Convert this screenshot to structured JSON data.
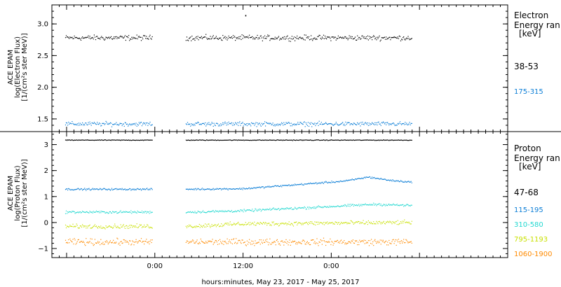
{
  "chart_data": [
    {
      "type": "scatter",
      "panel": "electron",
      "ylabel_lines": [
        "ACE EPAM",
        "log(Electron Flux)",
        "[1/(cm²s ster MeV)]"
      ],
      "ylim": [
        1.3,
        3.3
      ],
      "yticks": [
        1.5,
        2.0,
        2.5,
        3.0
      ],
      "ytick_labels": [
        "1.5",
        "2.0",
        "2.5",
        "3.0"
      ],
      "legend": {
        "title_lines": [
          "Electron",
          "Energy ran",
          "[keV]"
        ],
        "position": "right"
      },
      "series": [
        {
          "name": "38-53",
          "color": "#000000",
          "level": 2.78,
          "jitter": 0.06,
          "spike": {
            "t": 12.3,
            "v": 3.13
          }
        },
        {
          "name": "175-315",
          "color": "#0a7dd6",
          "level": 1.42,
          "jitter": 0.05
        }
      ]
    },
    {
      "type": "scatter",
      "panel": "proton",
      "ylabel_lines": [
        "ACE EPAM",
        "log(Proton Flux)",
        "[1/(cm²s ster MeV)]"
      ],
      "ylim": [
        -1.35,
        3.5
      ],
      "yticks": [
        -1,
        0,
        1,
        2,
        3
      ],
      "ytick_labels": [
        "−1",
        "0",
        "1",
        "2",
        "3"
      ],
      "legend": {
        "title_lines": [
          "Proton",
          "Energy ran",
          "[keV]"
        ],
        "position": "right"
      },
      "series": [
        {
          "name": "47-68",
          "color": "#000000",
          "level": 3.17,
          "jitter": 0.02
        },
        {
          "name": "115-195",
          "color": "#0a7dd6",
          "level": 1.28,
          "jitter": 0.05,
          "trend": [
            [
              12.0,
              1.3
            ],
            [
              26.0,
              1.6
            ],
            [
              29.0,
              1.75
            ],
            [
              32.0,
              1.62
            ],
            [
              35.0,
              1.55
            ]
          ]
        },
        {
          "name": "310-580",
          "color": "#22d8d0",
          "level": 0.4,
          "jitter": 0.07,
          "trend": [
            [
              12.0,
              0.45
            ],
            [
              30.0,
              0.7
            ],
            [
              35.0,
              0.65
            ]
          ]
        },
        {
          "name": "795-1193",
          "color": "#c8e000",
          "level": -0.15,
          "jitter": 0.12,
          "trend": [
            [
              12.0,
              -0.05
            ],
            [
              35.0,
              0.0
            ]
          ]
        },
        {
          "name": "1060-1900",
          "color": "#ff8a00",
          "level": -0.75,
          "jitter": 0.18
        }
      ]
    }
  ],
  "x_axis": {
    "label": "hours:minutes, May 23, 2017 - May 25, 2017",
    "range_hours": [
      -14,
      48
    ],
    "ticks": [
      0,
      12,
      24
    ],
    "tick_labels": [
      "0:00",
      "12:00",
      "0:00"
    ],
    "data_segments": [
      [
        -12.2,
        -0.4
      ],
      [
        4.2,
        35.0
      ]
    ]
  }
}
